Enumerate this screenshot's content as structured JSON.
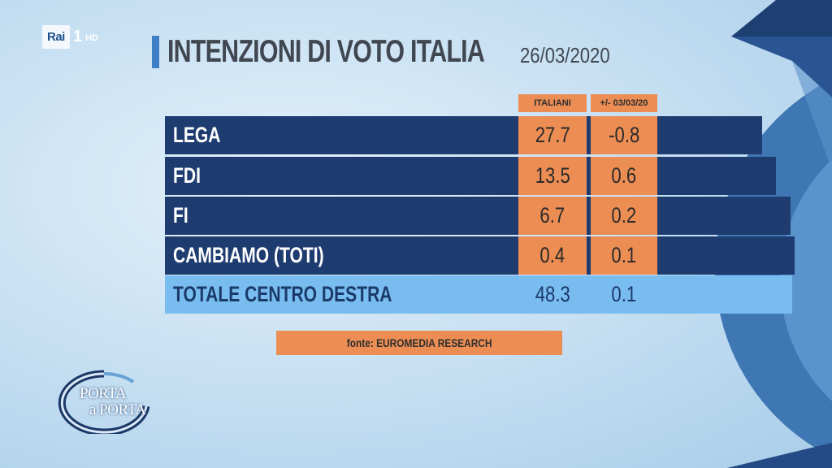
{
  "channel": {
    "brand": "Rai",
    "number": "1",
    "quality": "HD"
  },
  "title": "INTENZIONI DI VOTO ITALIA",
  "date": "26/03/2020",
  "colors": {
    "row_dark": "#1e3c70",
    "row_total": "#79bdf0",
    "accent_orange": "#ec8d54",
    "title_bar": "#3e7fc6"
  },
  "chart_data": {
    "type": "table",
    "title": "INTENZIONI DI VOTO ITALIA",
    "date": "26/03/2020",
    "columns": [
      "ITALIANI",
      "+/- 03/03/20"
    ],
    "rows": [
      {
        "party": "LEGA",
        "italiani": "27.7",
        "change": "-0.8"
      },
      {
        "party": "FDI",
        "italiani": "13.5",
        "change": "0.6"
      },
      {
        "party": "FI",
        "italiani": "6.7",
        "change": "0.2"
      },
      {
        "party": "CAMBIAMO (TOTI)",
        "italiani": "0.4",
        "change": "0.1"
      }
    ],
    "total": {
      "label": "TOTALE CENTRO DESTRA",
      "italiani": "48.3",
      "change": "0.1"
    },
    "source": "fonte: EUROMEDIA RESEARCH"
  },
  "show": {
    "line1": "PORTA",
    "line2": "a PORTA"
  }
}
